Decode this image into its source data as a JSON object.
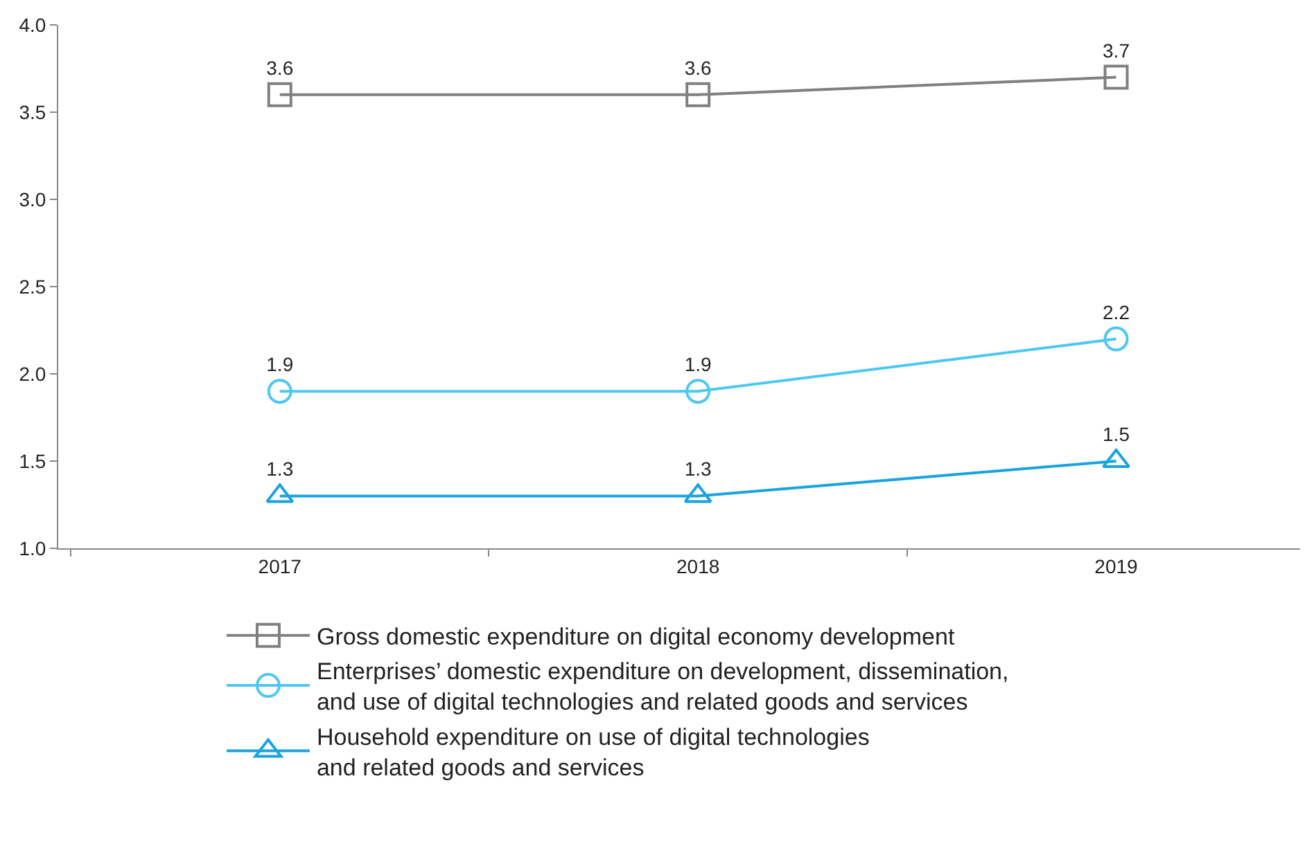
{
  "chart_data": {
    "type": "line",
    "categories": [
      "2017",
      "2018",
      "2019"
    ],
    "series": [
      {
        "name": "Gross domestic expenditure on digital economy development",
        "color": "#808080",
        "marker": "square",
        "values": [
          3.6,
          3.6,
          3.7
        ]
      },
      {
        "name": "Enterprises’ domestic expenditure on development, dissemination,\nand use of digital technologies and related goods and services",
        "color": "#4dc8f0",
        "marker": "circle",
        "values": [
          1.9,
          1.9,
          2.2
        ]
      },
      {
        "name": "Household expenditure on use of digital technologies\nand related goods and services",
        "color": "#1aa3df",
        "marker": "triangle",
        "values": [
          1.3,
          1.3,
          1.5
        ]
      }
    ],
    "ylim": [
      1.0,
      4.0
    ],
    "yticks": [
      {
        "value": 1.0,
        "label": "1.0"
      },
      {
        "value": 1.5,
        "label": "1.5"
      },
      {
        "value": 2.0,
        "label": "2.0"
      },
      {
        "value": 2.5,
        "label": "2.5"
      },
      {
        "value": 3.0,
        "label": "3.0"
      },
      {
        "value": 3.5,
        "label": "3.5"
      },
      {
        "value": 4.0,
        "label": "4.0"
      }
    ],
    "legend": "bottom",
    "data_labels": true,
    "line_style": "solid"
  }
}
